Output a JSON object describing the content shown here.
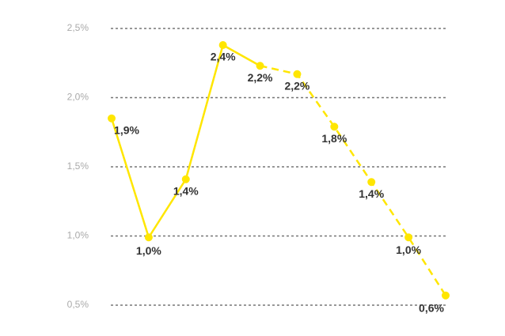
{
  "chart_data": {
    "type": "line",
    "categories": [
      null,
      null,
      null,
      null,
      null,
      null,
      null,
      null,
      null,
      null
    ],
    "values": [
      1.85,
      0.99,
      1.41,
      2.38,
      2.23,
      2.17,
      1.79,
      1.39,
      0.99,
      0.57
    ],
    "value_labels": [
      "1,9%",
      "1,0%",
      "1,4%",
      "2,4%",
      "2,2%",
      "2,2%",
      "1,8%",
      "1,4%",
      "1,0%",
      "0,6%"
    ],
    "color": "#ffe600",
    "dashed_from_index": 4,
    "ylim": [
      0.5,
      2.5
    ],
    "yticks": [
      {
        "value": 0.5,
        "label": "0,5%"
      },
      {
        "value": 1.0,
        "label": "1,0%"
      },
      {
        "value": 1.5,
        "label": "1,5%"
      },
      {
        "value": 2.0,
        "label": "2,0%"
      },
      {
        "value": 2.5,
        "label": "2,5%"
      }
    ],
    "grid": true
  }
}
